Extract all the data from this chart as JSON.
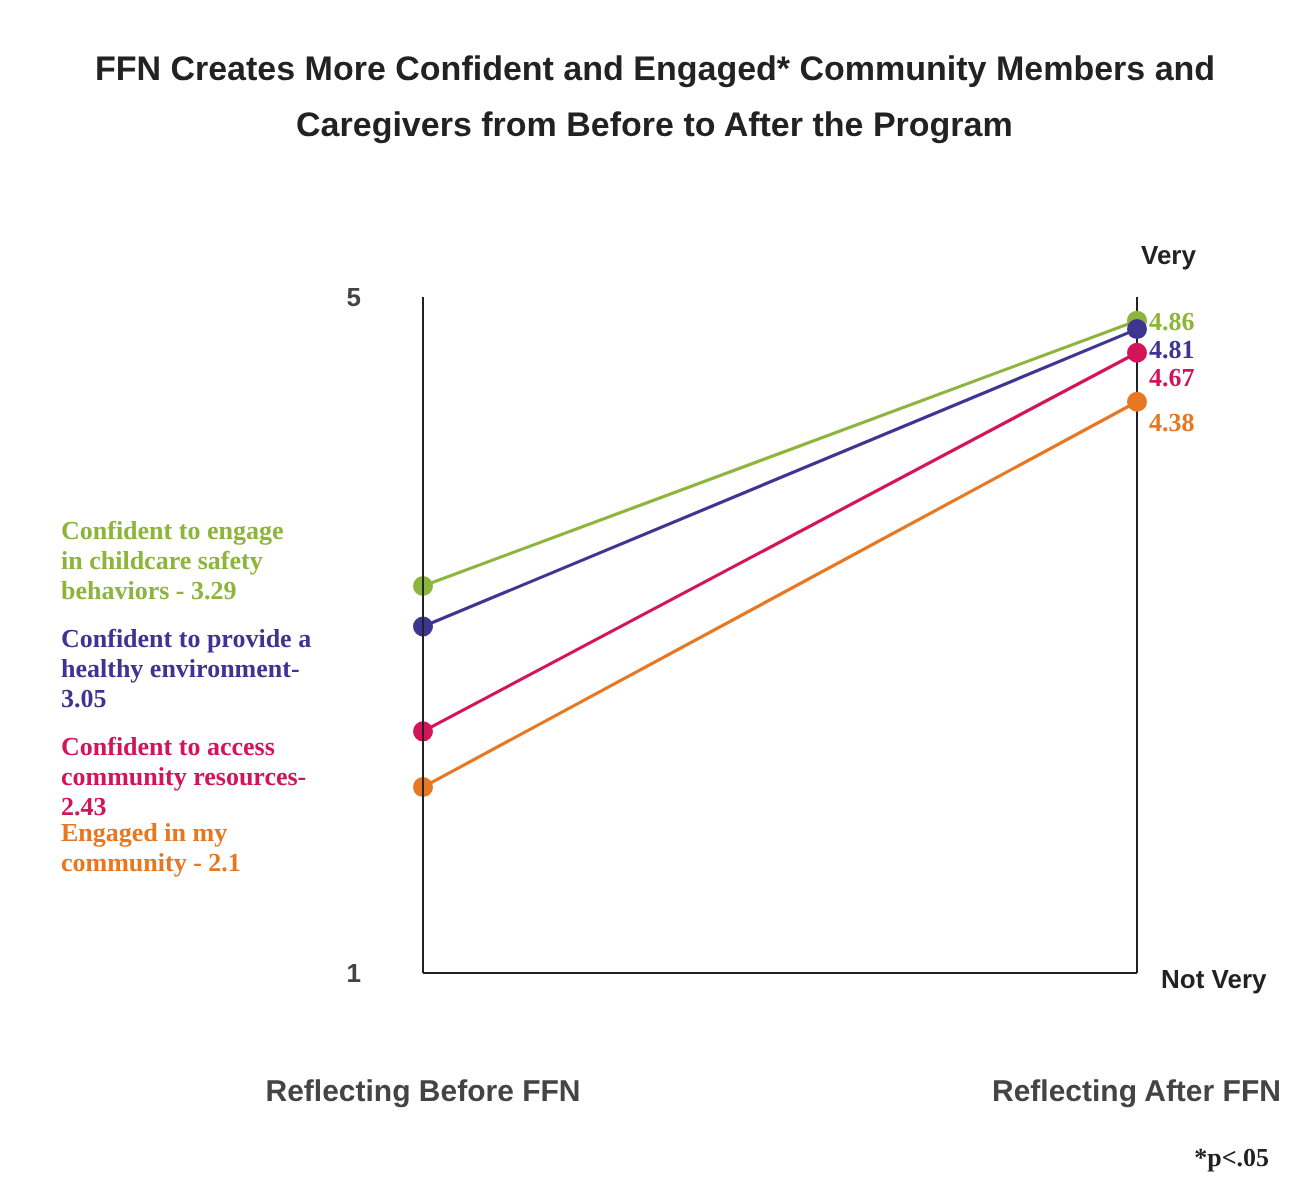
{
  "chart_data": {
    "type": "line",
    "title": "FFN Creates More Confident and Engaged* Community Members and\nCaregivers from Before to After the Program",
    "categories": [
      "Reflecting Before FFN",
      "Reflecting After FFN"
    ],
    "series": [
      {
        "name": "Confident to engage\nin childcare safety\nbehaviors - 3.29",
        "color": "#8db53c",
        "values": [
          3.29,
          4.86
        ],
        "value_labels": [
          null,
          "4.86"
        ]
      },
      {
        "name": "Confident to provide a\nhealthy environment-\n3.05",
        "color": "#3d3591",
        "values": [
          3.05,
          4.81
        ],
        "value_labels": [
          null,
          "4.81"
        ]
      },
      {
        "name": "Confident to access\ncommunity resources-\n2.43",
        "color": "#d4145a",
        "values": [
          2.43,
          4.67
        ],
        "value_labels": [
          null,
          "4.67"
        ]
      },
      {
        "name": "Engaged in my\ncommunity - 2.1",
        "color": "#e87722",
        "values": [
          2.1,
          4.38
        ],
        "value_labels": [
          null,
          "4.38"
        ]
      }
    ],
    "ylim": [
      1,
      5
    ],
    "yticks": [
      5,
      1
    ],
    "marker": "circle",
    "line_style": "solid",
    "grid": "x",
    "annotations": [
      "Very",
      "Not Very",
      "*p<.05"
    ]
  }
}
